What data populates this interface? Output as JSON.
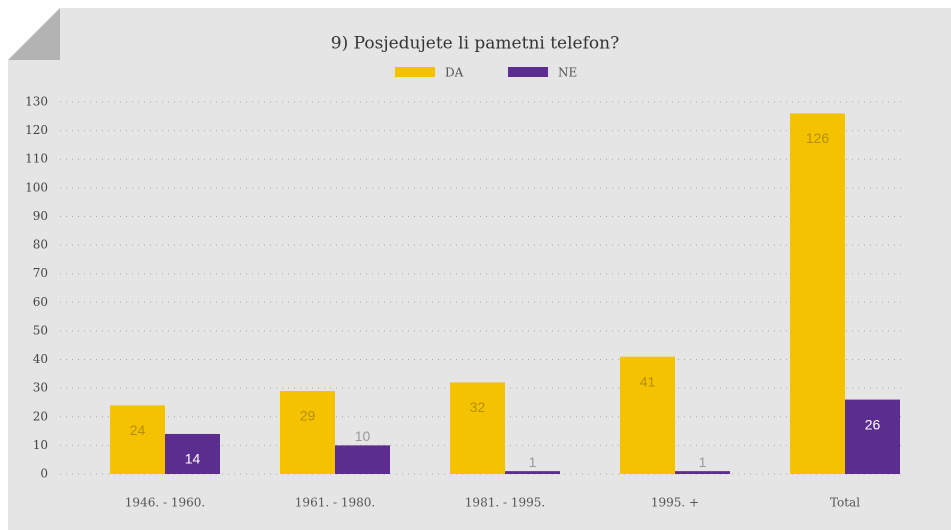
{
  "chart_data": {
    "type": "bar",
    "title": "9) Posjedujete li pametni telefon?",
    "categories": [
      "1946. - 1960.",
      "1961. - 1980.",
      "1981. - 1995.",
      "1995. +",
      "Total"
    ],
    "series": [
      {
        "name": "DA",
        "color": "#f5c200",
        "values": [
          24,
          29,
          32,
          41,
          126
        ]
      },
      {
        "name": "NE",
        "color": "#5b2d8e",
        "values": [
          14,
          10,
          1,
          1,
          26
        ]
      }
    ],
    "ylim": [
      0,
      130
    ],
    "yticks": [
      0,
      10,
      20,
      30,
      40,
      50,
      60,
      70,
      80,
      90,
      100,
      110,
      120,
      130
    ],
    "grid": true,
    "legend": "top"
  }
}
